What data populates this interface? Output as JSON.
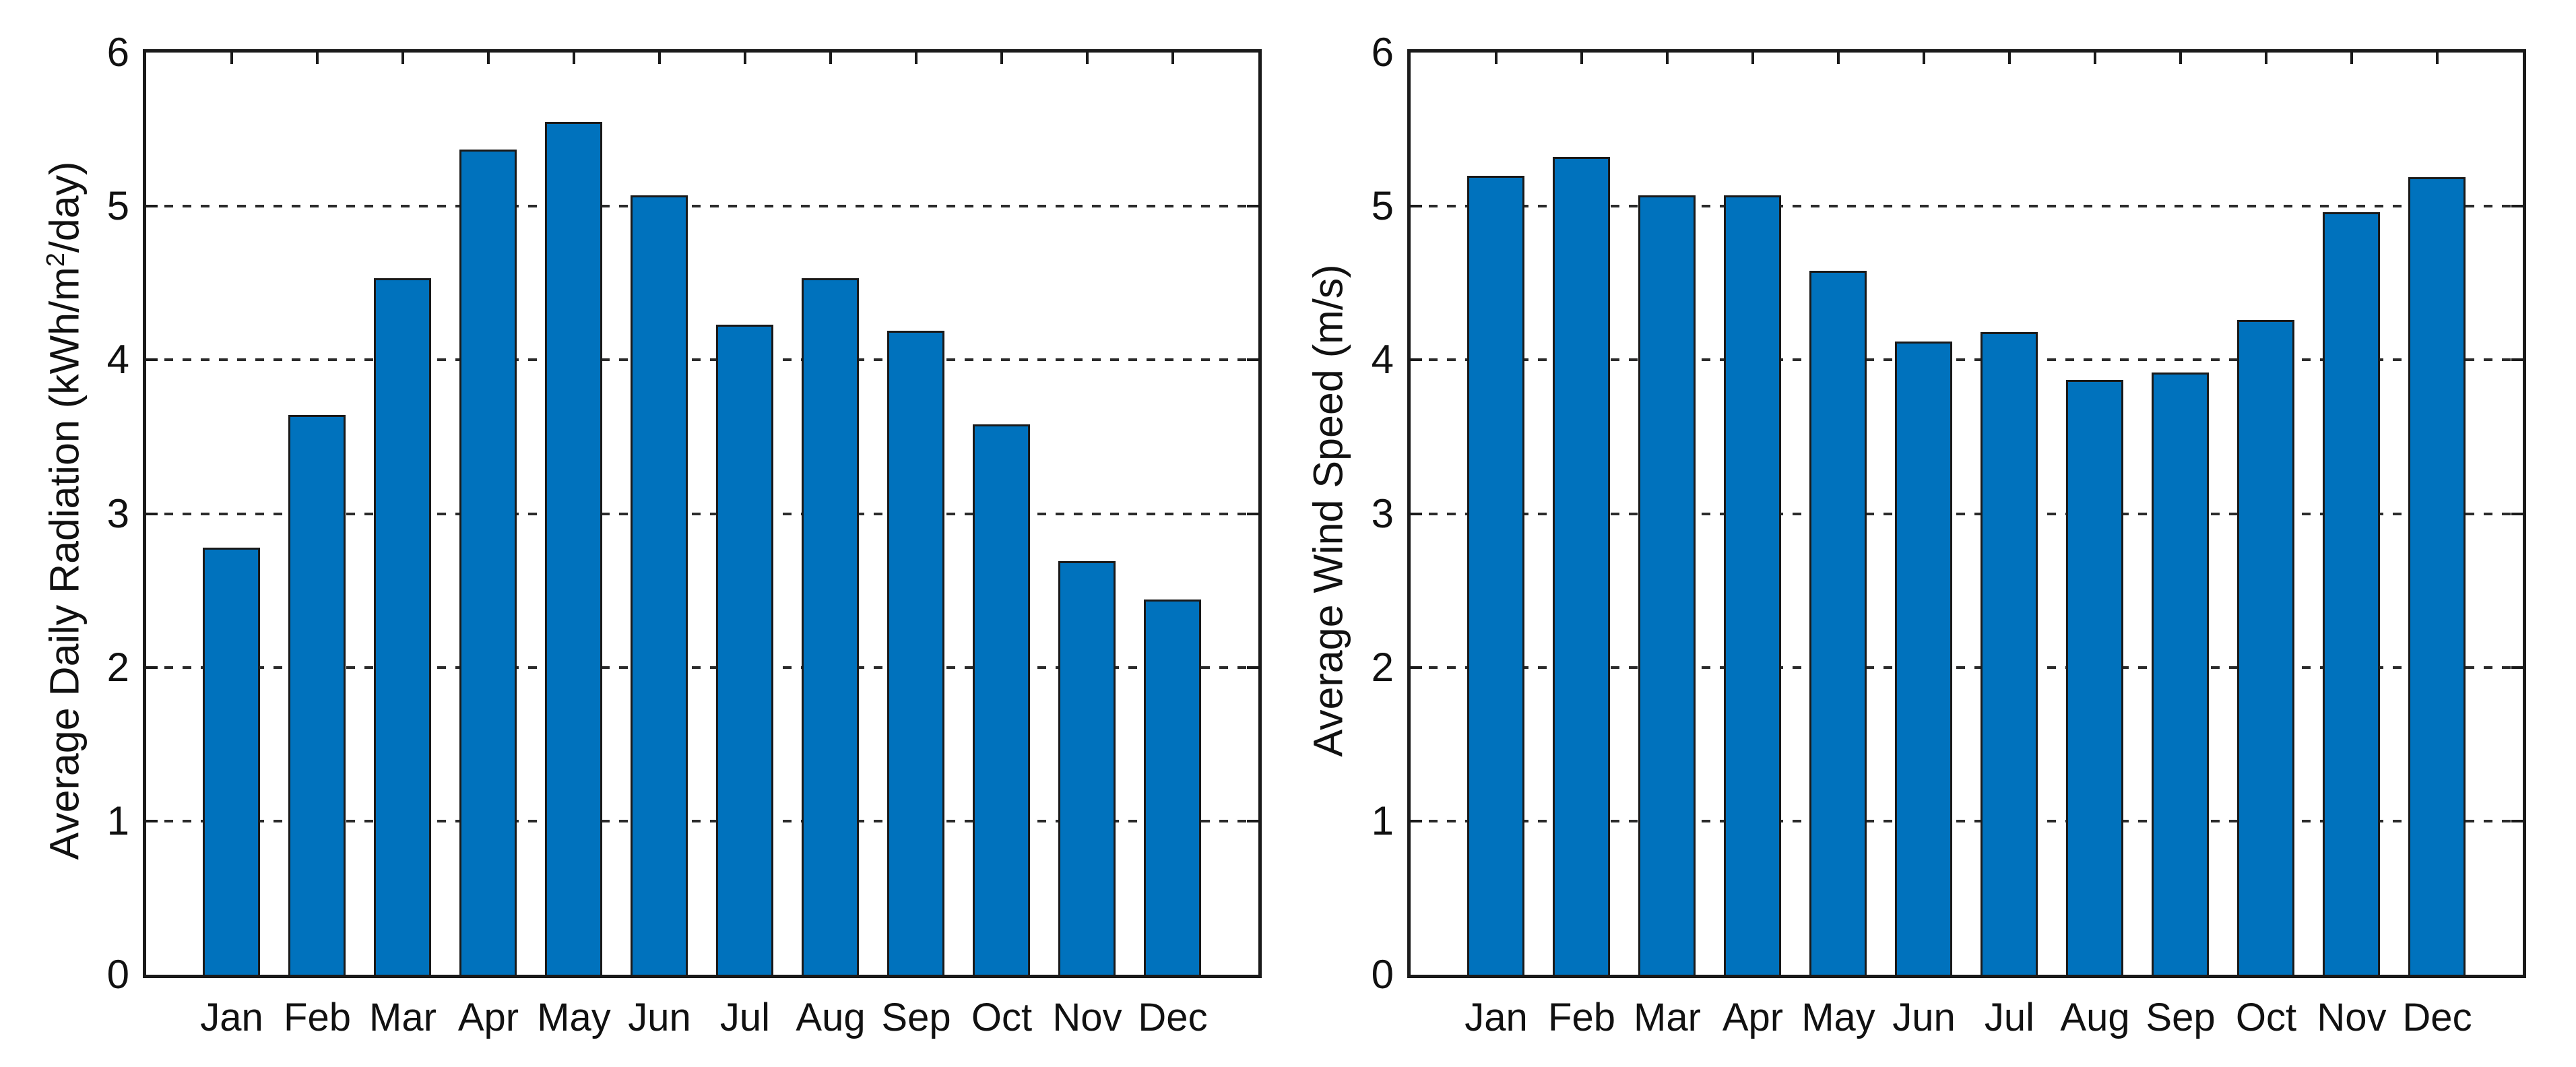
{
  "figure": {
    "background": "#ffffff",
    "description": "Two side-by-side monthly bar charts"
  },
  "colors": {
    "bar_fill": "#0072BD",
    "bar_edge": "#1a1a1a",
    "axis_ink": "#1a1a1a",
    "grid_ink": "#2b2b2b",
    "text_ink": "#111111"
  },
  "chart_data": [
    {
      "type": "bar",
      "name": "average-daily-radiation",
      "title": "",
      "xlabel": "",
      "ylabel": "Average Daily Radiation (kWh/m2/day)",
      "ylabel_parts": {
        "text": "Average Daily Radiation (kWh/m",
        "sup": "2",
        "tail": "/day)"
      },
      "categories": [
        "Jan",
        "Feb",
        "Mar",
        "Apr",
        "May",
        "Jun",
        "Jul",
        "Aug",
        "Sep",
        "Oct",
        "Nov",
        "Dec"
      ],
      "values": [
        2.78,
        3.64,
        4.53,
        5.37,
        5.55,
        5.07,
        4.23,
        4.53,
        4.19,
        3.58,
        2.69,
        2.44
      ],
      "ylim": [
        0,
        6
      ],
      "yticks": [
        0,
        1,
        2,
        3,
        4,
        5,
        6
      ],
      "gridlines": [
        1,
        2,
        3,
        4,
        5
      ],
      "grid_style": "dashed",
      "legend": "none"
    },
    {
      "type": "bar",
      "name": "average-wind-speed",
      "title": "",
      "xlabel": "",
      "ylabel": "Average Wind Speed (m/s)",
      "ylabel_parts": {
        "text": "Average Wind Speed (m/s)",
        "sup": "",
        "tail": ""
      },
      "categories": [
        "Jan",
        "Feb",
        "Mar",
        "Apr",
        "May",
        "Jun",
        "Jul",
        "Aug",
        "Sep",
        "Oct",
        "Nov",
        "Dec"
      ],
      "values": [
        5.2,
        5.32,
        5.07,
        5.07,
        4.58,
        4.12,
        4.18,
        3.87,
        3.92,
        4.26,
        4.96,
        5.19
      ],
      "ylim": [
        0,
        6
      ],
      "yticks": [
        0,
        1,
        2,
        3,
        4,
        5,
        6
      ],
      "gridlines": [
        1,
        2,
        3,
        4,
        5
      ],
      "grid_style": "dashed",
      "legend": "none"
    }
  ]
}
